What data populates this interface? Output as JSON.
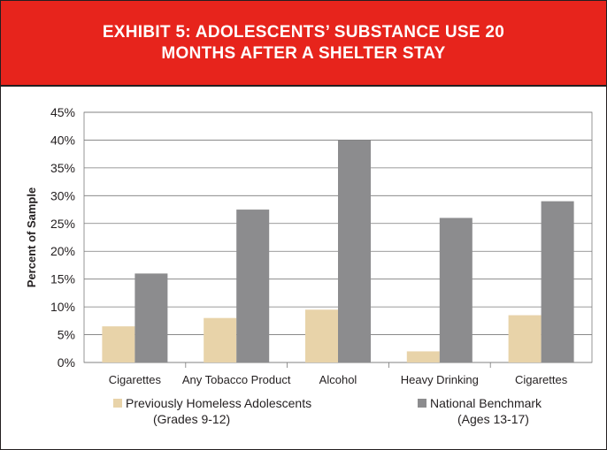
{
  "header": {
    "line1": "EXHIBIT 5: ADOLESCENTS’ SUBSTANCE USE 20",
    "line2": "MONTHS AFTER A SHELTER STAY"
  },
  "colors": {
    "banner": "#e7241c",
    "series_homeless": "#e8d3a9",
    "series_national": "#8c8c8e"
  },
  "chart_data": {
    "type": "bar",
    "title": "EXHIBIT 5: ADOLESCENTS’ SUBSTANCE USE 20 MONTHS AFTER A SHELTER STAY",
    "xlabel": "",
    "ylabel": "Percent of Sample",
    "ylim": [
      0,
      45
    ],
    "yticks": [
      "0%",
      "5%",
      "10%",
      "15%",
      "20%",
      "25%",
      "30%",
      "35%",
      "40%",
      "45%"
    ],
    "grid": true,
    "legend_position": "bottom",
    "categories": [
      "Cigarettes",
      "Any Tobacco Product",
      "Alcohol",
      "Heavy Drinking",
      "Cigarettes"
    ],
    "series": [
      {
        "name": "Previously Homeless Adolescents",
        "name_line2": "(Grades 9-12)",
        "color": "#e8d3a9",
        "values": [
          6.5,
          8,
          9.5,
          2,
          8.5
        ]
      },
      {
        "name": "National Benchmark",
        "name_line2": "(Ages 13-17)",
        "color": "#8c8c8e",
        "values": [
          16,
          27.5,
          40,
          26,
          29
        ]
      }
    ]
  }
}
